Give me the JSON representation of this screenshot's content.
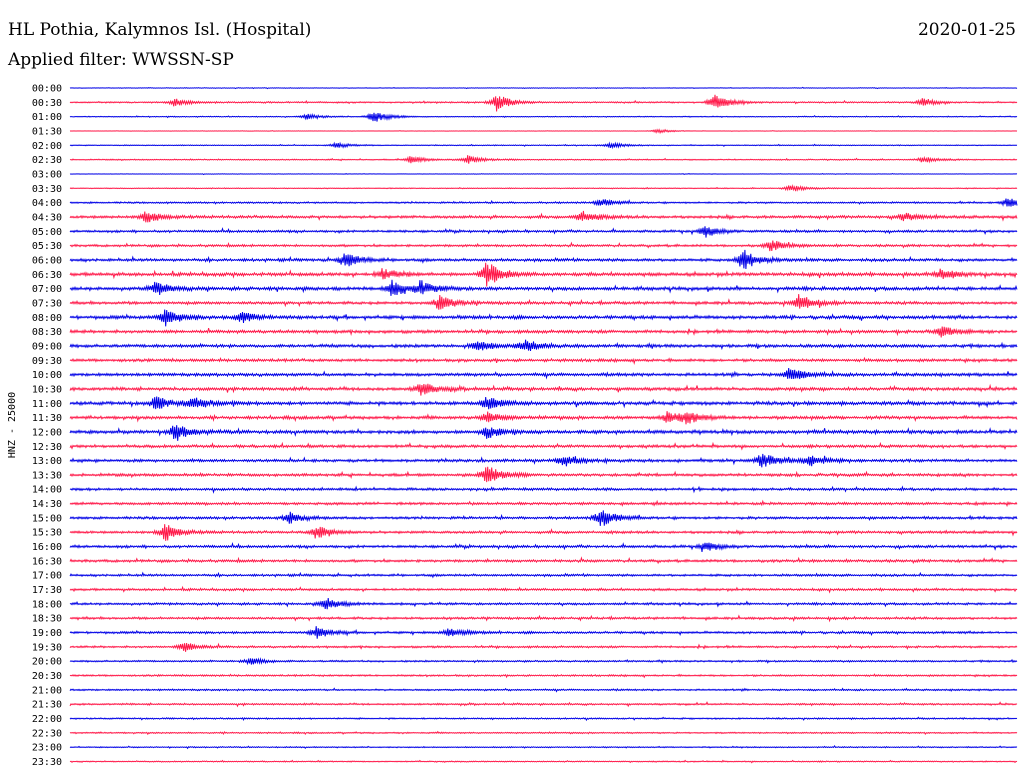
{
  "header": {
    "station": "HL Pothia, Kalymnos Isl. (Hospital)",
    "date": "2020-01-25",
    "filter": "Applied filter: WWSSN-SP"
  },
  "chart_data": {
    "type": "line",
    "ylabel": "HNZ - 25000",
    "xlabel": "",
    "grid": false,
    "colors": [
      "#0000e6",
      "#ff1a4a"
    ],
    "categories": [
      "00:00",
      "00:30",
      "01:00",
      "01:30",
      "02:00",
      "02:30",
      "03:00",
      "03:30",
      "04:00",
      "04:30",
      "05:00",
      "05:30",
      "06:00",
      "06:30",
      "07:00",
      "07:30",
      "08:00",
      "08:30",
      "09:00",
      "09:30",
      "10:00",
      "10:30",
      "11:00",
      "11:30",
      "12:00",
      "12:30",
      "13:00",
      "13:30",
      "14:00",
      "14:30",
      "15:00",
      "15:30",
      "16:00",
      "16:30",
      "17:00",
      "17:30",
      "18:00",
      "18:30",
      "19:00",
      "19:30",
      "20:00",
      "20:30",
      "21:00",
      "21:30",
      "22:00",
      "22:30",
      "23:00",
      "23:30"
    ],
    "noise_levels": [
      0.2,
      0.5,
      0.3,
      0.1,
      0.3,
      0.4,
      0.15,
      0.3,
      0.6,
      1.0,
      0.8,
      0.8,
      1.0,
      1.2,
      1.2,
      1.0,
      1.2,
      1.1,
      1.1,
      1.0,
      1.1,
      1.1,
      1.2,
      1.1,
      1.2,
      1.0,
      1.0,
      1.0,
      0.9,
      0.9,
      0.9,
      0.9,
      0.9,
      0.9,
      0.8,
      0.8,
      0.8,
      0.8,
      0.8,
      0.7,
      0.6,
      0.6,
      0.6,
      0.6,
      0.5,
      0.5,
      0.4,
      0.4
    ],
    "events": [
      {
        "row": 1,
        "t": 0.11,
        "a": 4
      },
      {
        "row": 1,
        "t": 0.45,
        "a": 9
      },
      {
        "row": 1,
        "t": 0.68,
        "a": 9
      },
      {
        "row": 1,
        "t": 0.9,
        "a": 4
      },
      {
        "row": 2,
        "t": 0.25,
        "a": 3
      },
      {
        "row": 2,
        "t": 0.32,
        "a": 7
      },
      {
        "row": 3,
        "t": 0.62,
        "a": 2
      },
      {
        "row": 4,
        "t": 0.28,
        "a": 3
      },
      {
        "row": 4,
        "t": 0.57,
        "a": 3
      },
      {
        "row": 5,
        "t": 0.36,
        "a": 4
      },
      {
        "row": 5,
        "t": 0.42,
        "a": 4
      },
      {
        "row": 5,
        "t": 0.9,
        "a": 3
      },
      {
        "row": 7,
        "t": 0.76,
        "a": 4
      },
      {
        "row": 8,
        "t": 0.56,
        "a": 4
      },
      {
        "row": 8,
        "t": 0.99,
        "a": 5
      },
      {
        "row": 9,
        "t": 0.08,
        "a": 6
      },
      {
        "row": 9,
        "t": 0.54,
        "a": 6
      },
      {
        "row": 9,
        "t": 0.88,
        "a": 4
      },
      {
        "row": 10,
        "t": 0.67,
        "a": 6
      },
      {
        "row": 11,
        "t": 0.74,
        "a": 6
      },
      {
        "row": 12,
        "t": 0.29,
        "a": 8
      },
      {
        "row": 12,
        "t": 0.71,
        "a": 11
      },
      {
        "row": 13,
        "t": 0.33,
        "a": 6
      },
      {
        "row": 13,
        "t": 0.44,
        "a": 13
      },
      {
        "row": 13,
        "t": 0.92,
        "a": 6
      },
      {
        "row": 14,
        "t": 0.09,
        "a": 7
      },
      {
        "row": 14,
        "t": 0.34,
        "a": 8
      },
      {
        "row": 14,
        "t": 0.37,
        "a": 7
      },
      {
        "row": 15,
        "t": 0.39,
        "a": 8
      },
      {
        "row": 15,
        "t": 0.77,
        "a": 9
      },
      {
        "row": 16,
        "t": 0.1,
        "a": 9
      },
      {
        "row": 16,
        "t": 0.18,
        "a": 6
      },
      {
        "row": 17,
        "t": 0.92,
        "a": 6
      },
      {
        "row": 18,
        "t": 0.43,
        "a": 6
      },
      {
        "row": 18,
        "t": 0.48,
        "a": 7
      },
      {
        "row": 20,
        "t": 0.76,
        "a": 8
      },
      {
        "row": 21,
        "t": 0.37,
        "a": 7
      },
      {
        "row": 22,
        "t": 0.09,
        "a": 7
      },
      {
        "row": 22,
        "t": 0.13,
        "a": 6
      },
      {
        "row": 22,
        "t": 0.44,
        "a": 7
      },
      {
        "row": 23,
        "t": 0.44,
        "a": 6
      },
      {
        "row": 23,
        "t": 0.63,
        "a": 6
      },
      {
        "row": 23,
        "t": 0.65,
        "a": 6
      },
      {
        "row": 24,
        "t": 0.11,
        "a": 8
      },
      {
        "row": 24,
        "t": 0.44,
        "a": 6
      },
      {
        "row": 26,
        "t": 0.52,
        "a": 6
      },
      {
        "row": 26,
        "t": 0.73,
        "a": 8
      },
      {
        "row": 26,
        "t": 0.78,
        "a": 6
      },
      {
        "row": 27,
        "t": 0.44,
        "a": 10
      },
      {
        "row": 30,
        "t": 0.23,
        "a": 6
      },
      {
        "row": 30,
        "t": 0.56,
        "a": 10
      },
      {
        "row": 31,
        "t": 0.1,
        "a": 9
      },
      {
        "row": 31,
        "t": 0.26,
        "a": 7
      },
      {
        "row": 32,
        "t": 0.67,
        "a": 5
      },
      {
        "row": 36,
        "t": 0.27,
        "a": 6
      },
      {
        "row": 38,
        "t": 0.26,
        "a": 6
      },
      {
        "row": 38,
        "t": 0.4,
        "a": 5
      },
      {
        "row": 39,
        "t": 0.12,
        "a": 5
      },
      {
        "row": 40,
        "t": 0.19,
        "a": 4
      }
    ]
  }
}
